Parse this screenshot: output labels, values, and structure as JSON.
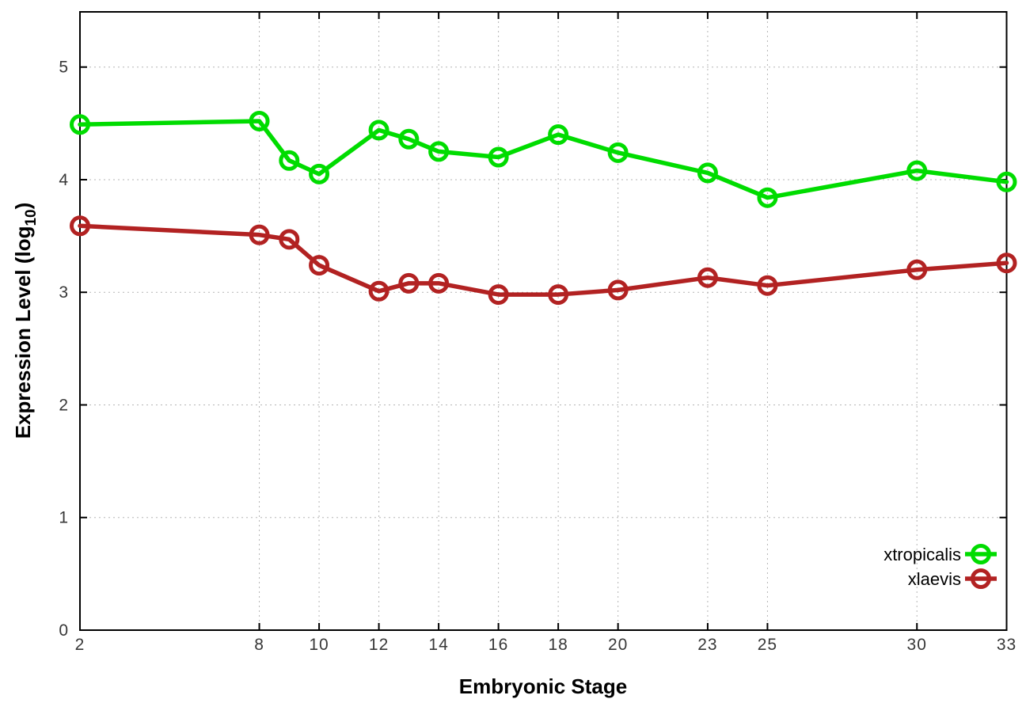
{
  "labels": {
    "y_title_main": "Expression Level (log",
    "y_title_sub": "10",
    "y_title_close": ")"
  },
  "style": {
    "background": "#ffffff",
    "grid_color": "#b5b5b5",
    "axis_color": "#000000",
    "tick_label_color": "#383838"
  },
  "chart_data": {
    "type": "line",
    "title": "",
    "xlabel": "Embryonic Stage",
    "ylabel": "Expression Level (log10)",
    "x": [
      2,
      8,
      9,
      10,
      12,
      13,
      14,
      16,
      18,
      20,
      23,
      25,
      30,
      33
    ],
    "x_ticks": [
      2,
      8,
      10,
      12,
      14,
      16,
      18,
      20,
      23,
      25,
      30,
      33
    ],
    "y_ticks": [
      0,
      1,
      2,
      3,
      4,
      5
    ],
    "xlim": [
      2,
      33
    ],
    "ylim": [
      0,
      5.49
    ],
    "grid": true,
    "legend_position": "inside-bottom-right",
    "marker": "open-circle",
    "series": [
      {
        "name": "xtropicalis",
        "color": "#00dc00",
        "values": [
          4.49,
          4.52,
          4.17,
          4.05,
          4.44,
          4.36,
          4.25,
          4.2,
          4.4,
          4.24,
          4.06,
          3.84,
          4.08,
          3.98
        ]
      },
      {
        "name": "xlaevis",
        "color": "#b22222",
        "values": [
          3.59,
          3.51,
          3.47,
          3.24,
          3.01,
          3.08,
          3.08,
          2.98,
          2.98,
          3.02,
          3.13,
          3.06,
          3.2,
          3.26
        ]
      }
    ]
  }
}
